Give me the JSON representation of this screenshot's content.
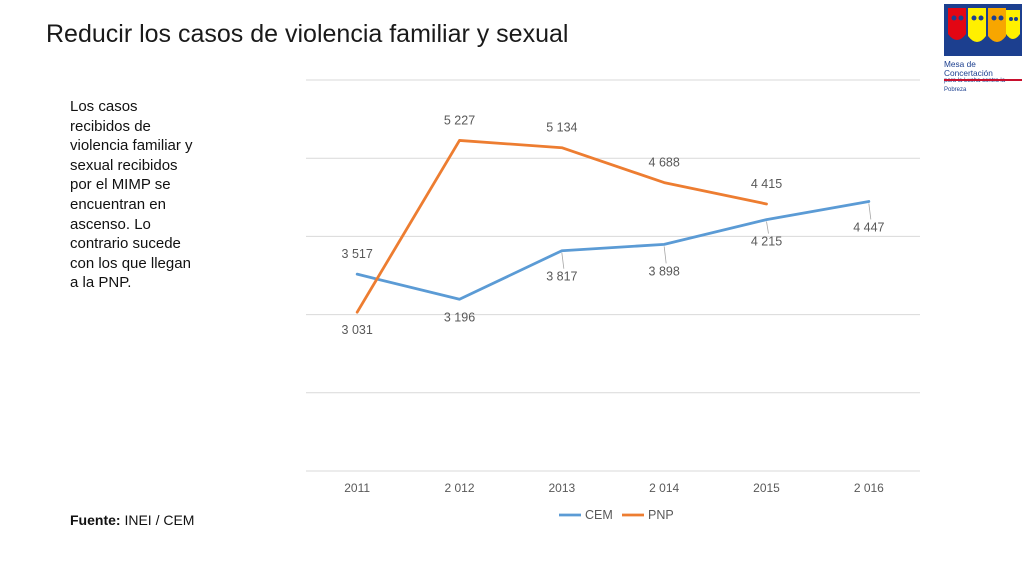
{
  "slide": {
    "title": "Reducir los casos de violencia familiar y sexual",
    "description": "Los casos recibidos de violencia familiar y sexual recibidos por el MIMP se encuentran en ascenso. Lo contrario sucede con los que llegan  a la PNP.",
    "source_label": "Fuente:",
    "source_value": "INEI / CEM"
  },
  "logo": {
    "line1": "Mesa de Concertación",
    "line2": "para la Lucha contra la Pobreza",
    "colors": [
      "#e30613",
      "#f7a600",
      "#fff000",
      "#1c3f8f"
    ]
  },
  "chart_data": {
    "type": "line",
    "categories": [
      "2011",
      "2 012",
      "2013",
      "2 014",
      "2015",
      "2 016"
    ],
    "series": [
      {
        "name": "CEM",
        "color": "#5b9bd5",
        "values": [
          3517,
          3196,
          3817,
          3898,
          4215,
          4447
        ],
        "labels": [
          "3 517",
          "3 196",
          "3 817",
          "3 898",
          "4 215",
          "4 447"
        ]
      },
      {
        "name": "PNP",
        "color": "#ed7d31",
        "values": [
          3031,
          5227,
          5134,
          4688,
          4415,
          null
        ],
        "labels": [
          "3 031",
          "5 227",
          "5 134",
          "4 688",
          "4 415",
          null
        ]
      }
    ],
    "ylim": [
      1000,
      6000
    ],
    "grid": true,
    "legend": "bottom"
  }
}
